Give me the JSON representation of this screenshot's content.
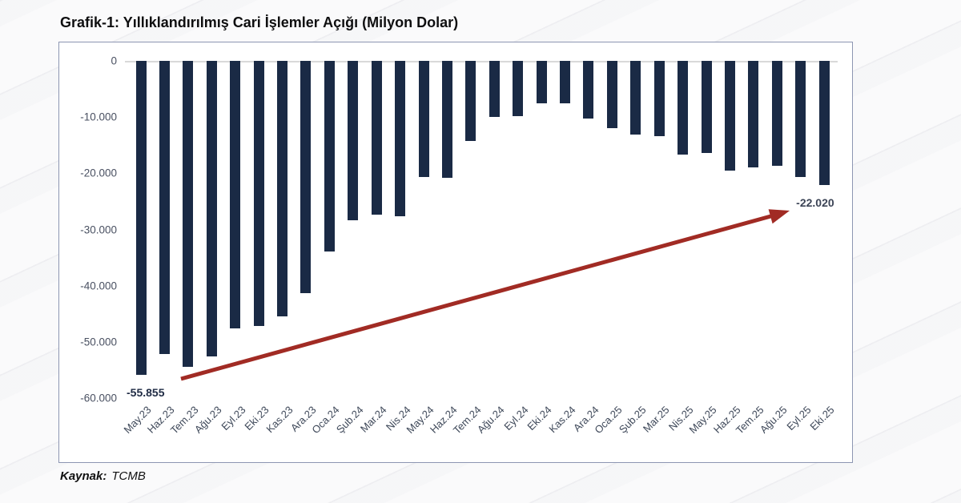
{
  "page": {
    "title": "Grafik-1: Yıllıklandırılmış Cari İşlemler Açığı (Milyon Dolar)",
    "source_label": "Kaynak:",
    "source_value": "TCMB"
  },
  "chart_data": {
    "type": "bar",
    "title": "Grafik-1: Yıllıklandırılmış Cari İşlemler Açığı (Milyon Dolar)",
    "unit": "Milyon Dolar",
    "categories": [
      "May.23",
      "Haz.23",
      "Tem.23",
      "Ağu.23",
      "Eyl.23",
      "Eki.23",
      "Kas.23",
      "Ara.23",
      "Oca.24",
      "Şub.24",
      "Mar.24",
      "Nis.24",
      "May.24",
      "Haz.24",
      "Tem.24",
      "Ağu.24",
      "Eyl.24",
      "Eki.24",
      "Kas.24",
      "Ara.24",
      "Oca.25",
      "Şub.25",
      "Mar.25",
      "Nis.25",
      "May.25",
      "Haz.25",
      "Tem.25",
      "Ağu.25",
      "Eyl.25",
      "Eki.25"
    ],
    "values": [
      -55855,
      -52100,
      -54450,
      -52550,
      -47550,
      -47200,
      -45400,
      -41350,
      -33850,
      -28300,
      -27350,
      -27600,
      -20600,
      -20800,
      -14250,
      -10000,
      -9800,
      -7500,
      -7600,
      -10300,
      -12000,
      -13100,
      -13450,
      -16650,
      -16400,
      -19500,
      -19000,
      -18650,
      -20600,
      -22020
    ],
    "ylim": [
      -60000,
      0
    ],
    "yticks": [
      0,
      -10000,
      -20000,
      -30000,
      -40000,
      -50000,
      -60000
    ],
    "ytick_labels": [
      "0",
      "-10.000",
      "-20.000",
      "-30.000",
      "-40.000",
      "-50.000",
      "-60.000"
    ],
    "grid": "top zero line only",
    "legend": "none",
    "annotations": [
      {
        "target": "first_bar",
        "text": "-55.855"
      },
      {
        "target": "last_bar",
        "text": "-22.020"
      }
    ],
    "arrow": {
      "description": "dark red trend arrow from first-bar area up to last-bar label",
      "color": "#a12b24"
    },
    "bar_color": "#1a2a45",
    "axis_label_color": "#4a5162",
    "border_color": "#8d96b2"
  }
}
